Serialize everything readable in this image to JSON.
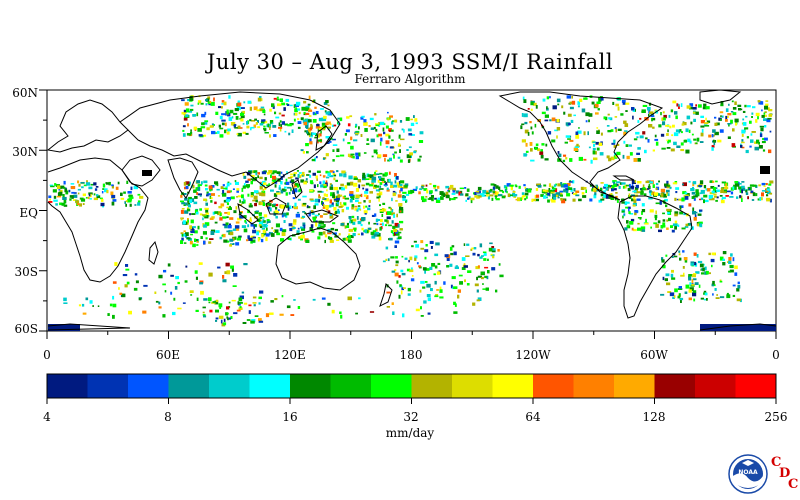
{
  "title": "July 30 – Aug 3, 1993 SSM/I Rainfall",
  "subtitle": "Ferraro Algorithm",
  "map": {
    "y_labels": [
      "60N",
      "30N",
      "EQ",
      "30S",
      "60S"
    ],
    "x_labels": [
      "0",
      "60E",
      "120E",
      "180",
      "120W",
      "60W",
      "0"
    ],
    "land_color": "#ffffff",
    "coastline_color": "#000000"
  },
  "colorbar": {
    "colors": [
      "#001a80",
      "#0033b3",
      "#0055ff",
      "#009999",
      "#00cccc",
      "#00ffff",
      "#008800",
      "#00bb00",
      "#00ff00",
      "#b3b300",
      "#dddd00",
      "#ffff00",
      "#ff5500",
      "#ff8000",
      "#ffaa00",
      "#990000",
      "#cc0000",
      "#ff0000"
    ],
    "tick_labels": [
      "4",
      "8",
      "16",
      "32",
      "64",
      "128",
      "256"
    ],
    "units": "mm/day"
  },
  "footer": {
    "logo_icon": "noaa-logo-icon",
    "logo_text": "NOAA",
    "cdc_letters": [
      "C",
      "D",
      "C"
    ]
  }
}
